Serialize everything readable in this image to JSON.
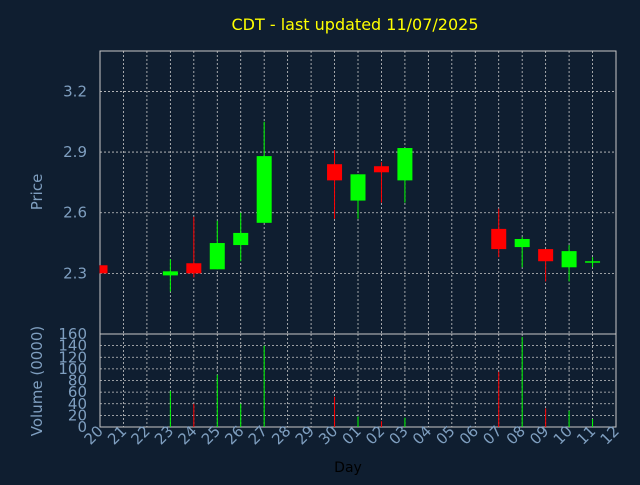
{
  "chart_data": {
    "type": "candlestick",
    "title": "CDT - last updated 11/07/2025",
    "xlabel": "Day",
    "price_panel": {
      "ylabel": "Price",
      "yticks": [
        "2.3",
        "2.6",
        "2.9",
        "3.2"
      ],
      "ylim": [
        2.0,
        3.4
      ]
    },
    "volume_panel": {
      "ylabel": "Volume (0000)",
      "yticks": [
        "0",
        "20",
        "40",
        "60",
        "80",
        "100",
        "120",
        "140",
        "160"
      ],
      "ylim": [
        0,
        160
      ]
    },
    "x_tick_labels": [
      "20",
      "21",
      "22",
      "23",
      "24",
      "25",
      "26",
      "27",
      "28",
      "29",
      "30",
      "01",
      "02",
      "03",
      "04",
      "05",
      "06",
      "07",
      "08",
      "09",
      "10",
      "11",
      "12"
    ],
    "colors": {
      "up": "#00ff00",
      "down": "#ff0000",
      "title": "#ffff00",
      "axis_text": "#7f9fc0",
      "background": "#0f1e30",
      "grid": "#c8c8c8"
    },
    "candles": [
      {
        "day": "20",
        "open": 2.34,
        "close": 2.3,
        "high": 2.34,
        "low": 2.3,
        "volume": 0
      },
      {
        "day": "23",
        "open": 2.29,
        "close": 2.31,
        "high": 2.37,
        "low": 2.21,
        "volume": 62
      },
      {
        "day": "24",
        "open": 2.35,
        "close": 2.3,
        "high": 2.58,
        "low": 2.28,
        "volume": 40
      },
      {
        "day": "25",
        "open": 2.32,
        "close": 2.45,
        "high": 2.56,
        "low": 2.32,
        "volume": 90
      },
      {
        "day": "26",
        "open": 2.44,
        "close": 2.5,
        "high": 2.6,
        "low": 2.36,
        "volume": 40
      },
      {
        "day": "27",
        "open": 2.55,
        "close": 2.88,
        "high": 3.05,
        "low": 2.55,
        "volume": 140
      },
      {
        "day": "30",
        "open": 2.84,
        "close": 2.76,
        "high": 2.91,
        "low": 2.57,
        "volume": 52
      },
      {
        "day": "01",
        "open": 2.66,
        "close": 2.79,
        "high": 2.79,
        "low": 2.57,
        "volume": 18
      },
      {
        "day": "02",
        "open": 2.83,
        "close": 2.8,
        "high": 2.85,
        "low": 2.65,
        "volume": 10
      },
      {
        "day": "03",
        "open": 2.76,
        "close": 2.92,
        "high": 2.92,
        "low": 2.65,
        "volume": 16
      },
      {
        "day": "07",
        "open": 2.52,
        "close": 2.42,
        "high": 2.62,
        "low": 2.38,
        "volume": 95
      },
      {
        "day": "08",
        "open": 2.43,
        "close": 2.47,
        "high": 2.48,
        "low": 2.33,
        "volume": 155
      },
      {
        "day": "09",
        "open": 2.42,
        "close": 2.36,
        "high": 2.42,
        "low": 2.26,
        "volume": 32
      },
      {
        "day": "10",
        "open": 2.33,
        "close": 2.41,
        "high": 2.44,
        "low": 2.26,
        "volume": 28
      },
      {
        "day": "11",
        "open": 2.36,
        "close": 2.36,
        "high": 2.38,
        "low": 2.33,
        "volume": 14
      }
    ]
  }
}
